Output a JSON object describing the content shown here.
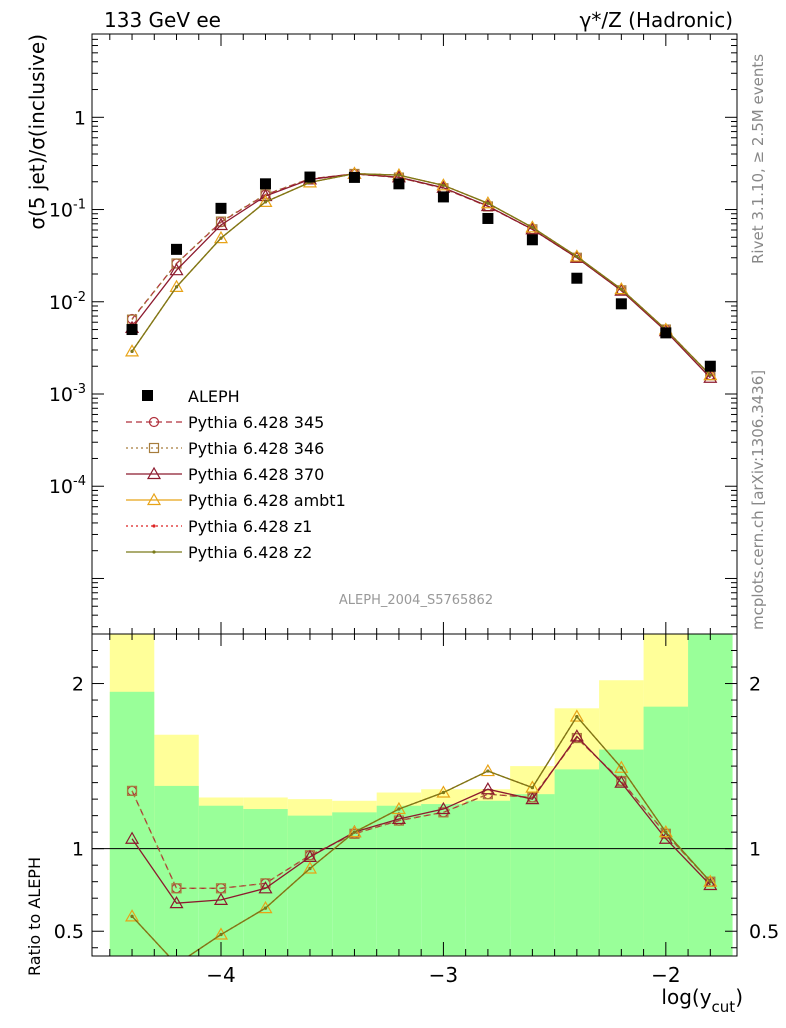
{
  "header": {
    "left": "133 GeV ee",
    "right": "γ*/Z (Hadronic)"
  },
  "side_text": {
    "rivet": "Rivet 3.1.10, ≥ 2.5M events",
    "mcplots": "mcplots.cern.ch [arXiv:1306.3436]"
  },
  "analysis_label": "ALEPH_2004_S5765862",
  "chart_data": [
    {
      "type": "scatter",
      "name": "main",
      "ylabel": "σ(5 jet)/σ(inclusive)",
      "yscale": "log",
      "ylim": [
        2.5e-06,
        8
      ],
      "xlim": [
        -4.58,
        -1.68
      ],
      "y_tick_labels": [
        "1",
        "10^-1",
        "10^-2",
        "10^-3",
        "10^-4"
      ],
      "x": [
        -4.4,
        -4.2,
        -4.0,
        -3.8,
        -3.6,
        -3.4,
        -3.2,
        -3.0,
        -2.8,
        -2.6,
        -2.4,
        -2.2,
        -2.0,
        -1.8
      ],
      "data": {
        "name": "ALEPH",
        "color": "#000000",
        "values": [
          0.005,
          0.037,
          0.103,
          0.19,
          0.225,
          0.223,
          0.19,
          0.137,
          0.08,
          0.047,
          0.018,
          0.0095,
          0.0046,
          0.002
        ]
      },
      "series": [
        {
          "name": "Pythia 6.428 345",
          "color": "#b0303c",
          "line": "dashed",
          "marker": "circle",
          "values": [
            0.0065,
            0.026,
            0.073,
            0.145,
            0.215,
            0.243,
            0.222,
            0.17,
            0.108,
            0.061,
            0.03,
            0.0133,
            0.005,
            0.0016
          ]
        },
        {
          "name": "Pythia 6.428 346",
          "color": "#a67c3c",
          "line": "dotted",
          "marker": "square",
          "values": [
            0.0064,
            0.026,
            0.074,
            0.146,
            0.216,
            0.243,
            0.222,
            0.17,
            0.108,
            0.061,
            0.03,
            0.0133,
            0.005,
            0.0016
          ]
        },
        {
          "name": "Pythia 6.428 370",
          "color": "#8c1a2e",
          "line": "solid",
          "marker": "triangle",
          "values": [
            0.0052,
            0.022,
            0.068,
            0.14,
            0.212,
            0.244,
            0.224,
            0.172,
            0.109,
            0.061,
            0.03,
            0.0132,
            0.0048,
            0.0015
          ]
        },
        {
          "name": "Pythia 6.428 ambt1",
          "color": "#e8a317",
          "line": "solid",
          "marker": "triangle",
          "values": [
            0.0029,
            0.0145,
            0.049,
            0.121,
            0.197,
            0.245,
            0.236,
            0.183,
            0.117,
            0.064,
            0.031,
            0.0137,
            0.005,
            0.0016
          ]
        },
        {
          "name": "Pythia 6.428 z1",
          "color": "#dd2222",
          "line": "dotted",
          "marker": "dot",
          "values": [
            0.0029,
            0.0145,
            0.049,
            0.121,
            0.197,
            0.245,
            0.236,
            0.183,
            0.117,
            0.064,
            0.031,
            0.0137,
            0.005,
            0.0016
          ]
        },
        {
          "name": "Pythia 6.428 z2",
          "color": "#7a7a1a",
          "line": "solid",
          "marker": "dot",
          "values": [
            0.0029,
            0.0145,
            0.049,
            0.121,
            0.197,
            0.245,
            0.236,
            0.183,
            0.117,
            0.064,
            0.031,
            0.0137,
            0.005,
            0.0016
          ]
        }
      ]
    },
    {
      "type": "line",
      "name": "ratio",
      "ylabel": "Ratio to ALEPH",
      "xlabel": "log(y_cut)",
      "ylim": [
        0.35,
        2.3
      ],
      "xlim": [
        -4.58,
        -1.68
      ],
      "y_ticks": [
        0.5,
        1,
        2
      ],
      "x_ticks": [
        -4,
        -3,
        -2
      ],
      "x_tick_labels": [
        "−4",
        "−3",
        "−2"
      ],
      "reference_line": 1,
      "bin_edges": [
        -4.5,
        -4.3,
        -4.1,
        -3.9,
        -3.7,
        -3.5,
        -3.3,
        -3.1,
        -2.9,
        -2.7,
        -2.5,
        -2.3,
        -2.1,
        -1.9,
        -1.7
      ],
      "band_inner": {
        "color": "#99ff99",
        "low": [
          0.3,
          0.3,
          0.3,
          0.3,
          0.3,
          0.3,
          0.3,
          0.3,
          0.3,
          0.3,
          0.3,
          0.3,
          0.3,
          0.3
        ],
        "high": [
          1.95,
          1.38,
          1.26,
          1.24,
          1.2,
          1.22,
          1.26,
          1.27,
          1.29,
          1.33,
          1.48,
          1.6,
          1.86,
          2.3
        ]
      },
      "band_outer": {
        "color": "#ffff99",
        "low": [
          0.3,
          0.73,
          0.87,
          0.85,
          0.83,
          0.83,
          0.76,
          0.76,
          0.65,
          0.53,
          0.47,
          0.43,
          0.3,
          0.3
        ],
        "high": [
          2.3,
          1.69,
          1.31,
          1.31,
          1.3,
          1.29,
          1.34,
          1.36,
          1.36,
          1.5,
          1.85,
          2.02,
          2.3,
          2.3
        ]
      },
      "series": [
        {
          "name": "Pythia 6.428 345",
          "color": "#b0303c",
          "values": [
            1.35,
            0.76,
            0.76,
            0.79,
            0.96,
            1.09,
            1.17,
            1.22,
            1.33,
            1.31,
            1.67,
            1.41,
            1.09,
            0.8
          ]
        },
        {
          "name": "Pythia 6.428 346",
          "color": "#a67c3c",
          "values": [
            1.35,
            0.76,
            0.76,
            0.79,
            0.96,
            1.09,
            1.17,
            1.22,
            1.33,
            1.31,
            1.67,
            1.41,
            1.09,
            0.8
          ]
        },
        {
          "name": "Pythia 6.428 370",
          "color": "#8c1a2e",
          "values": [
            1.06,
            0.67,
            0.69,
            0.76,
            0.95,
            1.1,
            1.18,
            1.24,
            1.36,
            1.3,
            1.68,
            1.4,
            1.06,
            0.78
          ]
        },
        {
          "name": "Pythia 6.428 ambt1",
          "color": "#e8a317",
          "values": [
            0.59,
            0.3,
            0.48,
            0.64,
            0.88,
            1.1,
            1.24,
            1.34,
            1.47,
            1.37,
            1.8,
            1.49,
            1.1,
            0.8
          ]
        },
        {
          "name": "Pythia 6.428 z1",
          "color": "#dd2222",
          "values": [
            0.59,
            0.3,
            0.48,
            0.64,
            0.88,
            1.1,
            1.24,
            1.34,
            1.47,
            1.37,
            1.8,
            1.49,
            1.1,
            0.8
          ]
        },
        {
          "name": "Pythia 6.428 z2",
          "color": "#7a7a1a",
          "values": [
            0.59,
            0.3,
            0.48,
            0.64,
            0.88,
            1.1,
            1.24,
            1.34,
            1.47,
            1.37,
            1.8,
            1.49,
            1.1,
            0.8
          ]
        }
      ]
    }
  ]
}
